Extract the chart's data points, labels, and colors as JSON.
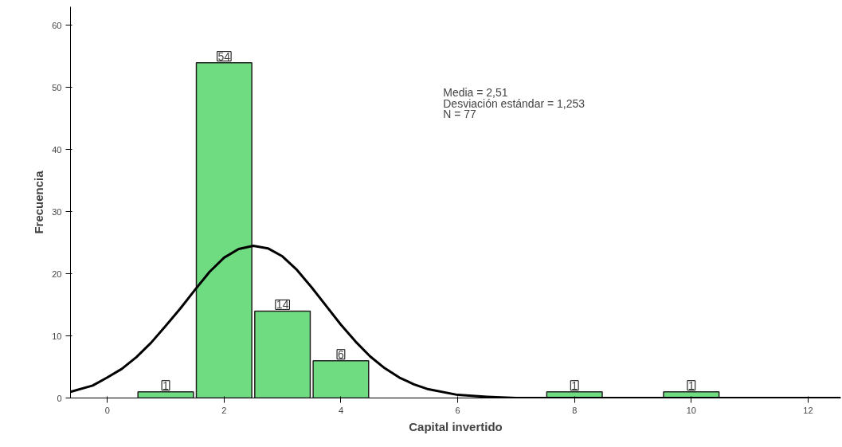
{
  "chart_data": {
    "type": "histogram",
    "xlabel": "Capital invertido",
    "ylabel": "Frecuencia",
    "bins": [
      0.5,
      1.5,
      2.5,
      3.5,
      4.5,
      5.5,
      6.5,
      7.5,
      8.5,
      9.5,
      10.5
    ],
    "values": [
      1,
      54,
      14,
      6,
      0,
      0,
      0,
      1,
      0,
      1
    ],
    "value_labels": [
      "1",
      "54",
      "14",
      "6",
      null,
      null,
      null,
      "1",
      null,
      "1"
    ],
    "color": "#6fdc82",
    "series": [
      {
        "type": "line",
        "color": "#000000",
        "x": [
          -0.63,
          -0.25,
          0,
          0.25,
          0.5,
          0.75,
          1,
          1.25,
          1.5,
          1.75,
          2,
          2.25,
          2.5,
          2.75,
          3,
          3.25,
          3.5,
          3.75,
          4,
          4.25,
          4.5,
          4.75,
          5,
          5.25,
          5.5,
          6,
          6.5,
          7,
          8,
          10,
          12.56
        ],
        "values": [
          1,
          2,
          3.3,
          4.7,
          6.6,
          8.9,
          11.6,
          14.4,
          17.4,
          20.3,
          22.6,
          24,
          24.5,
          24.1,
          22.8,
          20.6,
          17.8,
          14.8,
          11.8,
          9.1,
          6.7,
          4.8,
          3.3,
          2.2,
          1.4,
          0.5,
          0.2,
          0,
          0,
          0,
          0
        ]
      }
    ],
    "annotations": [
      "Media = 2,51",
      "Desviación estándar = 1,253",
      "N = 77"
    ],
    "xlim": [
      -0.63,
      12.56
    ],
    "ylim": [
      0,
      63
    ],
    "xticks": [
      0,
      2,
      4,
      6,
      8,
      10,
      12
    ],
    "yticks": [
      0,
      10,
      20,
      30,
      40,
      50,
      60
    ],
    "grid": false
  }
}
